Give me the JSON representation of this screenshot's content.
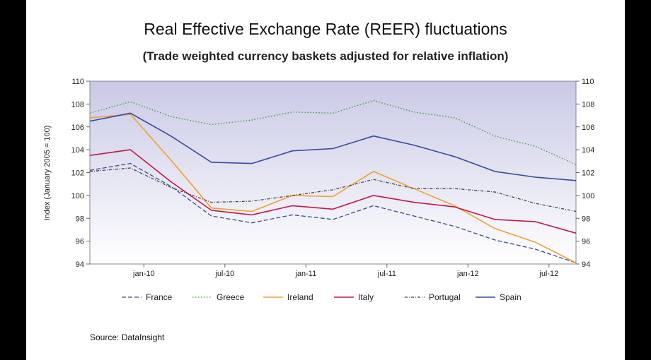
{
  "chart_data": {
    "type": "line",
    "title": "Real Effective Exchange Rate (REER) fluctuations",
    "subtitle": "(Trade weighted currency baskets adjusted for relative inflation)",
    "ylabel": "Index (January 2005 = 100)",
    "xlabel": "",
    "ylim": [
      94,
      110
    ],
    "yticks": [
      94,
      96,
      98,
      100,
      102,
      104,
      106,
      108,
      110
    ],
    "xlim": [
      "2009-09",
      "2012-09"
    ],
    "xticks": [
      {
        "label": "jan-10",
        "x": "2010-01"
      },
      {
        "label": "jul-10",
        "x": "2010-07"
      },
      {
        "label": "jan-11",
        "x": "2011-01"
      },
      {
        "label": "jul-11",
        "x": "2011-07"
      },
      {
        "label": "jan-12",
        "x": "2012-01"
      },
      {
        "label": "jul-12",
        "x": "2012-07"
      }
    ],
    "grid": false,
    "legend_position": "bottom",
    "x": [
      "2009-09",
      "2009-12",
      "2010-03",
      "2010-06",
      "2010-09",
      "2010-12",
      "2011-03",
      "2011-06",
      "2011-09",
      "2011-12",
      "2012-03",
      "2012-06",
      "2012-09"
    ],
    "series": [
      {
        "name": "France",
        "color": "#3a4a8c",
        "style": "dashed",
        "values": [
          102.2,
          102.8,
          100.8,
          98.2,
          97.6,
          98.3,
          97.9,
          99.1,
          98.2,
          97.3,
          96.1,
          95.3,
          94.1
        ]
      },
      {
        "name": "Greece",
        "color": "#3a9a3a",
        "style": "dotted",
        "values": [
          107.2,
          108.2,
          106.9,
          106.2,
          106.6,
          107.3,
          107.2,
          108.3,
          107.3,
          106.8,
          105.2,
          104.3,
          102.7
        ]
      },
      {
        "name": "Ireland",
        "color": "#f0a030",
        "style": "solid",
        "values": [
          106.8,
          107.1,
          103.1,
          98.9,
          98.6,
          100.0,
          99.9,
          102.1,
          100.6,
          99.1,
          97.1,
          95.9,
          94.1
        ]
      },
      {
        "name": "Italy",
        "color": "#c4184a",
        "style": "solid",
        "values": [
          103.5,
          104.0,
          101.2,
          98.7,
          98.3,
          99.1,
          98.8,
          100.0,
          99.4,
          99.0,
          97.9,
          97.7,
          96.7
        ]
      },
      {
        "name": "Portugal",
        "color": "#444444",
        "style": "dashdot",
        "values": [
          102.1,
          102.4,
          100.7,
          99.4,
          99.5,
          100.0,
          100.5,
          101.4,
          100.6,
          100.6,
          100.3,
          99.3,
          98.6
        ]
      },
      {
        "name": "Spain",
        "color": "#3a4a9c",
        "style": "solid",
        "values": [
          106.5,
          107.2,
          105.2,
          102.9,
          102.8,
          103.9,
          104.1,
          105.2,
          104.4,
          103.4,
          102.1,
          101.6,
          101.3
        ]
      }
    ]
  },
  "source": "Source: DataInsight"
}
